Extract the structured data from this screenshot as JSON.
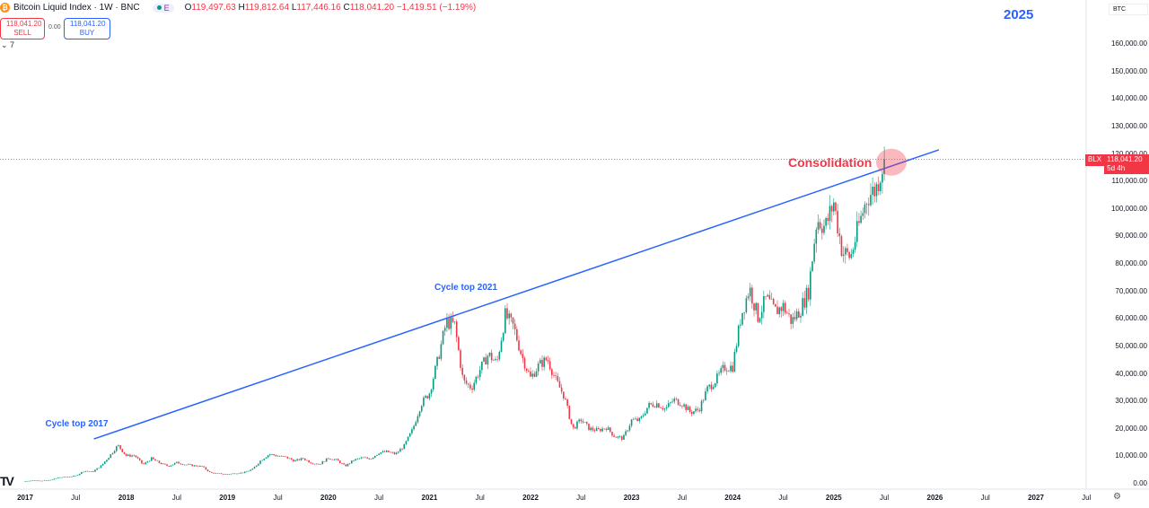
{
  "header": {
    "symbol": "Bitcoin Liquid Index · 1W · BNC",
    "coin_glyph": "₿",
    "exchange_badge": "E",
    "open_label": "O",
    "open": "119,497.63",
    "high_label": "H",
    "high": "119,812.64",
    "low_label": "L",
    "low": "117,446.16",
    "close_label": "C",
    "close": "118,041.20",
    "change": "−1,419.51 (−1.19%)"
  },
  "trade": {
    "sell_price": "118,041.20",
    "sell_label": "SELL",
    "spread": "0.00",
    "buy_price": "118,041.20",
    "buy_label": "BUY"
  },
  "indicators_toggle": "⌄ 7",
  "currency_selector": "BTC",
  "price_tag": {
    "symbol": "BLX",
    "price": "118,041.20",
    "countdown": "5d 4h"
  },
  "logo_text": "TV",
  "settings_icon": "⚙",
  "colors": {
    "up": "#089981",
    "down": "#f23645",
    "trendline": "#2962ff",
    "accent": "#2962ff"
  },
  "chart_data": {
    "type": "candlestick",
    "interval": "1W",
    "title": "Bitcoin Liquid Index",
    "ylim": [
      0,
      160000
    ],
    "yticks": [
      "0.00",
      "10,000.00",
      "20,000.00",
      "30,000.00",
      "40,000.00",
      "50,000.00",
      "60,000.00",
      "70,000.00",
      "80,000.00",
      "90,000.00",
      "100,000.00",
      "110,000.00",
      "120,000.00",
      "130,000.00",
      "140,000.00",
      "150,000.00",
      "160,000.00"
    ],
    "xticks": [
      "2017",
      "Jul",
      "2018",
      "Jul",
      "2019",
      "Jul",
      "2020",
      "Jul",
      "2021",
      "Jul",
      "2022",
      "Jul",
      "2023",
      "Jul",
      "2024",
      "Jul",
      "2025",
      "Jul",
      "2026",
      "Jul",
      "2027",
      "Jul"
    ],
    "xlim_years": [
      2017,
      2027.9
    ],
    "monthly_closes_start": 2017,
    "monthly_closes": [
      970,
      1190,
      1080,
      1350,
      2300,
      2480,
      2880,
      4700,
      4340,
      6450,
      10000,
      14000,
      10200,
      10300,
      6900,
      9200,
      7500,
      6400,
      7700,
      7000,
      6600,
      6300,
      4000,
      3700,
      3450,
      3800,
      4100,
      5300,
      8600,
      10800,
      10100,
      9600,
      8300,
      9200,
      7550,
      7200,
      9350,
      8600,
      6400,
      8600,
      9450,
      9140,
      11300,
      11650,
      10800,
      13800,
      19700,
      29000,
      33100,
      45200,
      58800,
      57700,
      37300,
      35000,
      41500,
      47100,
      43800,
      61300,
      57000,
      46200,
      38500,
      43200,
      45500,
      37700,
      31800,
      19900,
      23300,
      20000,
      19400,
      20500,
      17200,
      16500,
      23100,
      23100,
      28500,
      29200,
      27200,
      30500,
      29200,
      26000,
      27000,
      34500,
      37700,
      42300,
      42600,
      61200,
      71300,
      60600,
      67500,
      62700,
      64600,
      59000,
      63300,
      70200,
      96400,
      93400,
      102400,
      84300,
      82500,
      94200,
      104600,
      107200,
      118041
    ],
    "current_price": 118041.2,
    "trendline": {
      "from": [
        2017.68,
        16300
      ],
      "to": [
        2026.04,
        121500
      ]
    },
    "highlight": {
      "center": [
        2025.57,
        117000
      ],
      "label": "Consolidation"
    },
    "annotations": [
      {
        "text": "Cycle top 2017",
        "at": [
          2017.2,
          21000
        ]
      },
      {
        "text": "Cycle top 2021",
        "at": [
          2021.05,
          70500
        ]
      },
      {
        "text": "2025",
        "position": "top-right"
      }
    ]
  }
}
